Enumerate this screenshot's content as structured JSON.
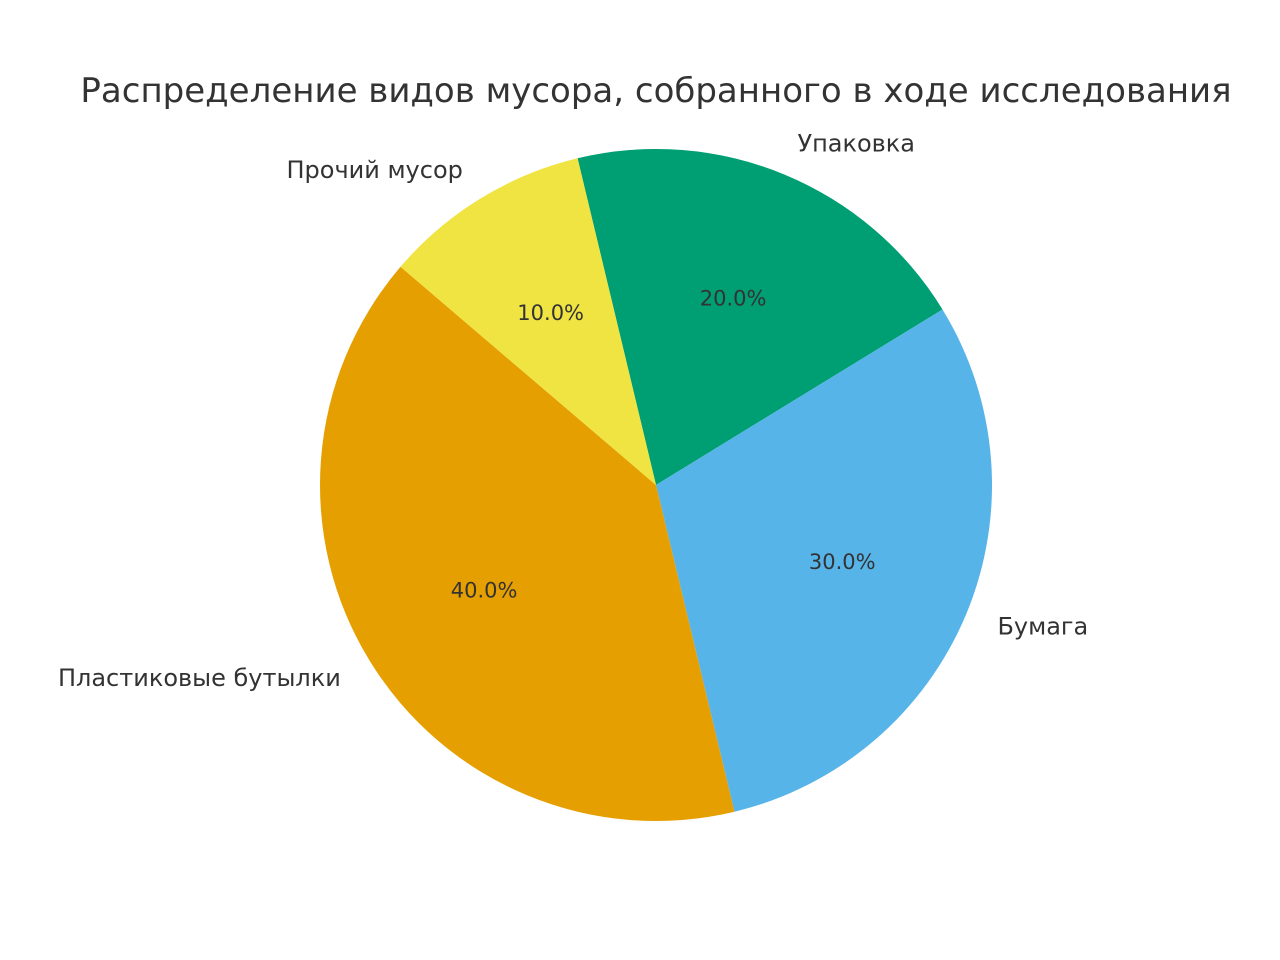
{
  "chart_data": {
    "type": "pie",
    "title": "Распределение видов мусора, собранного в ходе исследования",
    "categories": [
      "Упаковка",
      "Бумага",
      "Пластиковые бутылки",
      "Прочий мусор"
    ],
    "values": [
      20,
      30,
      40,
      10
    ],
    "percent_labels": [
      "20.0%",
      "30.0%",
      "40.0%",
      "10.0%"
    ],
    "colors": [
      "#009e73",
      "#56b4e9",
      "#e69f00",
      "#f0e442"
    ],
    "direction": "clockwise",
    "start": "top-left, Прочий мусор / Упаковка boundary"
  }
}
